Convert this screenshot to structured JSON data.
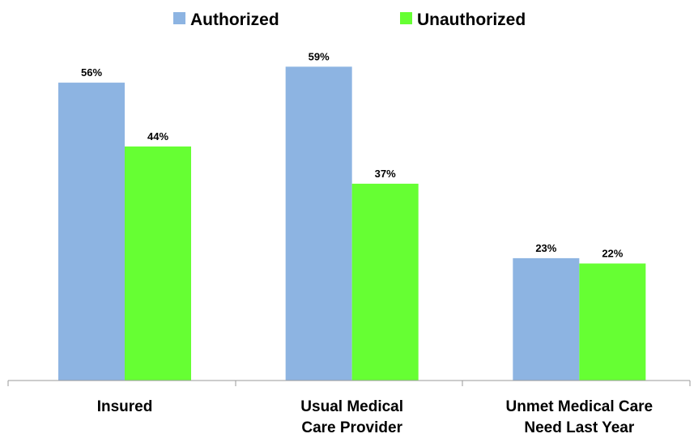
{
  "chart_data": {
    "type": "bar",
    "categories": [
      [
        "Insured"
      ],
      [
        "Usual Medical",
        "Care Provider"
      ],
      [
        "Unmet Medical Care",
        "Need Last Year"
      ]
    ],
    "series": [
      {
        "name": "Authorized",
        "color": "#8db4e2",
        "values": [
          56,
          59,
          23
        ],
        "value_labels": [
          "56%",
          "59%",
          "23%"
        ]
      },
      {
        "name": "Unauthorized",
        "color": "#66ff33",
        "values": [
          44,
          37,
          22
        ],
        "value_labels": [
          "44%",
          "37%",
          "22%"
        ]
      }
    ],
    "ylim": [
      0,
      60
    ],
    "legend_position": "top-center",
    "grid": false
  }
}
